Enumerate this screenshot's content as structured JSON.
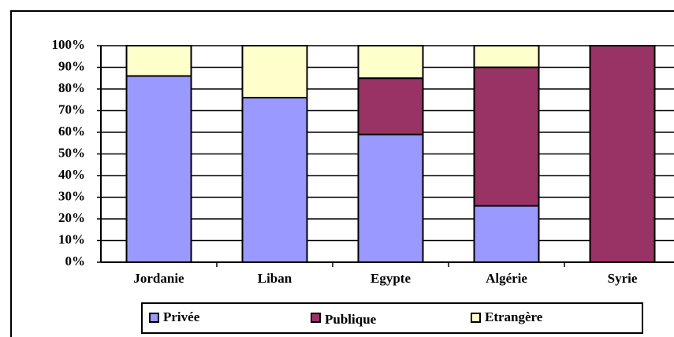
{
  "chart_data": {
    "type": "stacked_bar",
    "categories": [
      "Jordanie",
      "Liban",
      "Egypte",
      "Algérie",
      "Syrie"
    ],
    "series": [
      {
        "name": "Privée",
        "color": "#9999ff",
        "values": [
          86,
          76,
          59,
          26,
          0
        ]
      },
      {
        "name": "Publique",
        "color": "#993366",
        "values": [
          0,
          0,
          26,
          64,
          100
        ]
      },
      {
        "name": "Etrangère",
        "color": "#ffffcc",
        "values": [
          14,
          24,
          15,
          10,
          0
        ]
      }
    ],
    "ylim": [
      0,
      100
    ],
    "yticks": [
      {
        "value": 0,
        "label": "0%"
      },
      {
        "value": 10,
        "label": "10%"
      },
      {
        "value": 20,
        "label": "20%"
      },
      {
        "value": 30,
        "label": "30%"
      },
      {
        "value": 40,
        "label": "40%"
      },
      {
        "value": 50,
        "label": "50%"
      },
      {
        "value": 60,
        "label": "60%"
      },
      {
        "value": 70,
        "label": "70%"
      },
      {
        "value": 80,
        "label": "80%"
      },
      {
        "value": 90,
        "label": "90%"
      },
      {
        "value": 100,
        "label": "100%"
      }
    ],
    "grid": true
  }
}
